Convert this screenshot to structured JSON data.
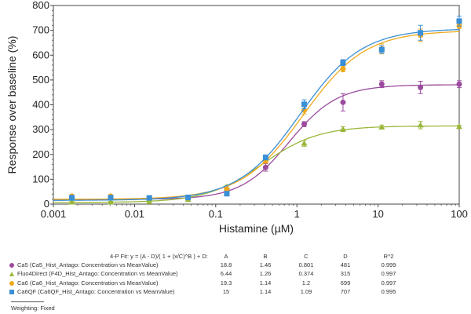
{
  "chart_data": {
    "type": "scatter",
    "xlabel": "Histamine (µM)",
    "ylabel": "Response over baseline (%)",
    "xscale": "log",
    "xlim": [
      0.001,
      100
    ],
    "ylim": [
      0,
      800
    ],
    "xticks": [
      "0.001",
      "0.01",
      "0.1",
      "1",
      "10",
      "100"
    ],
    "yticks": [
      "0",
      "100",
      "200",
      "300",
      "400",
      "500",
      "600",
      "700",
      "800"
    ],
    "grid": false,
    "x": [
      0.00169,
      0.00508,
      0.0152,
      0.0457,
      0.137,
      0.412,
      1.23,
      3.7,
      11.1,
      33.3,
      100
    ],
    "series": [
      {
        "name": "Ca5 (Ca5_Hist_Antago: Concentration vs MeanValue)",
        "color": "#9b4b9e",
        "marker": "circle",
        "values": [
          25,
          25,
          22,
          24,
          55,
          148,
          322,
          410,
          483,
          470,
          483
        ],
        "yerr": [
          4,
          4,
          3,
          3,
          5,
          15,
          10,
          35,
          14,
          25,
          14
        ],
        "fit": {
          "A": 18.8,
          "B": 1.46,
          "C": 0.801,
          "D": 481,
          "R2": 0.999
        }
      },
      {
        "name": "Fluo4Direct (F4D_Hist_Antago: Concentration vs MeanValue)",
        "color": "#9ab73a",
        "marker": "triangle",
        "values": [
          8,
          8,
          10,
          18,
          70,
          180,
          245,
          302,
          310,
          318,
          312
        ],
        "yerr": [
          3,
          3,
          3,
          3,
          6,
          8,
          12,
          10,
          8,
          15,
          6
        ],
        "fit": {
          "A": 6.44,
          "B": 1.26,
          "C": 0.374,
          "D": 315,
          "R2": 0.997
        }
      },
      {
        "name": "Ca6 (Ca6_Hist_Antago: Concentration vs MeanValue)",
        "color": "#f0a81c",
        "marker": "circle",
        "values": [
          32,
          32,
          24,
          26,
          60,
          175,
          378,
          545,
          625,
          680,
          718
        ],
        "yerr": [
          4,
          4,
          3,
          3,
          5,
          10,
          15,
          12,
          20,
          25,
          10
        ],
        "fit": {
          "A": 19.3,
          "B": 1.14,
          "C": 1.2,
          "D": 699,
          "R2": 0.997
        }
      },
      {
        "name": "Ca6QF (Ca6QF_Hist_Antago: Concentration vs MeanValue)",
        "color": "#3a8fd6",
        "marker": "square",
        "values": [
          26,
          26,
          25,
          27,
          42,
          188,
          402,
          570,
          622,
          690,
          737
        ],
        "yerr": [
          4,
          4,
          3,
          3,
          4,
          10,
          18,
          12,
          15,
          30,
          20
        ],
        "fit": {
          "A": 15,
          "B": 1.14,
          "C": 1.09,
          "D": 707,
          "R2": 0.995
        }
      }
    ]
  },
  "table": {
    "equation": "4-P Fit: y = (A - D)/( 1 + (x/C)^B ) + D:",
    "headers": [
      "A",
      "B",
      "C",
      "D",
      "R^2"
    ],
    "rows": [
      {
        "label": "Ca5 (Ca5_Hist_Antago: Concentration vs MeanValue)",
        "cells": [
          "18.8",
          "1.46",
          "0.801",
          "481",
          "0.999"
        ]
      },
      {
        "label": "Fluo4Direct (F4D_Hist_Antago: Concentration vs MeanValue)",
        "cells": [
          "6.44",
          "1.26",
          "0.374",
          "315",
          "0.997"
        ]
      },
      {
        "label": "Ca6 (Ca6_Hist_Antago: Concentration vs MeanValue)",
        "cells": [
          "19.3",
          "1.14",
          "1.2",
          "699",
          "0.997"
        ]
      },
      {
        "label": "Ca6QF (Ca6QF_Hist_Antago: Concentration vs MeanValue)",
        "cells": [
          "15",
          "1.14",
          "1.09",
          "707",
          "0.995"
        ]
      }
    ],
    "weighting": "Weighting: Fixed"
  }
}
